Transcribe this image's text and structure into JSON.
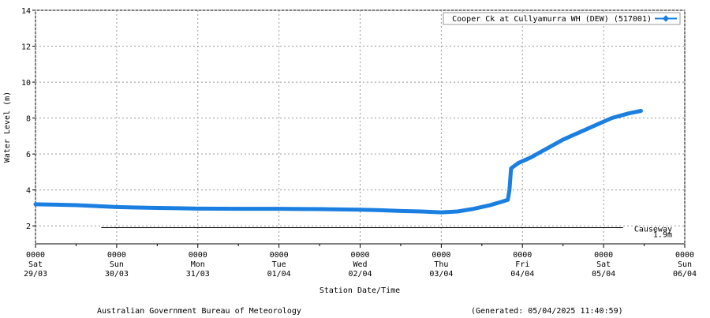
{
  "chart_data": {
    "type": "line",
    "y_label": "Water Level (m)",
    "x_label": "Station Date/Time",
    "footer_left": "Australian Government Bureau of Meteorology",
    "footer_right": "(Generated: 05/04/2025 11:40:59)",
    "ylim": [
      1,
      14
    ],
    "yticks": [
      2,
      4,
      6,
      8,
      10,
      12,
      14
    ],
    "xlim": [
      0,
      8
    ],
    "xticks": [
      {
        "value": 0,
        "label": [
          "0000",
          "Sat",
          "29/03"
        ]
      },
      {
        "value": 1,
        "label": [
          "0000",
          "Sun",
          "30/03"
        ]
      },
      {
        "value": 2,
        "label": [
          "0000",
          "Mon",
          "31/03"
        ]
      },
      {
        "value": 3,
        "label": [
          "0000",
          "Tue",
          "01/04"
        ]
      },
      {
        "value": 4,
        "label": [
          "0000",
          "Wed",
          "02/04"
        ]
      },
      {
        "value": 5,
        "label": [
          "0000",
          "Thu",
          "03/04"
        ]
      },
      {
        "value": 6,
        "label": [
          "0000",
          "Fri",
          "04/04"
        ]
      },
      {
        "value": 7,
        "label": [
          "0000",
          "Sat",
          "05/04"
        ]
      },
      {
        "value": 8,
        "label": [
          "0000",
          "Sun",
          "06/04"
        ]
      }
    ],
    "grid": true,
    "legend": "top-right",
    "x": [
      0,
      0.25,
      0.5,
      0.75,
      1.0,
      1.25,
      1.5,
      1.75,
      2.0,
      2.5,
      3.0,
      3.5,
      4.0,
      4.25,
      4.5,
      4.75,
      5.0,
      5.2,
      5.4,
      5.6,
      5.75,
      5.82,
      5.84,
      5.85,
      5.86,
      5.95,
      6.1,
      6.3,
      6.5,
      6.7,
      6.9,
      7.1,
      7.3,
      7.46
    ],
    "series": [
      {
        "name": "Cooper Ck at Cullyamurra WH (DEW) (517001)",
        "color": "#1a7fe0",
        "values": [
          3.2,
          3.18,
          3.15,
          3.1,
          3.05,
          3.02,
          3.0,
          2.98,
          2.96,
          2.95,
          2.95,
          2.93,
          2.9,
          2.87,
          2.83,
          2.8,
          2.75,
          2.8,
          2.95,
          3.15,
          3.35,
          3.45,
          4.0,
          4.6,
          5.2,
          5.5,
          5.8,
          6.3,
          6.8,
          7.2,
          7.6,
          8.0,
          8.25,
          8.4
        ]
      }
    ],
    "reference_line": {
      "name": "Causeway",
      "value": 1.9,
      "value_label": "1.9m",
      "x": [
        0.81,
        7.24
      ]
    }
  }
}
